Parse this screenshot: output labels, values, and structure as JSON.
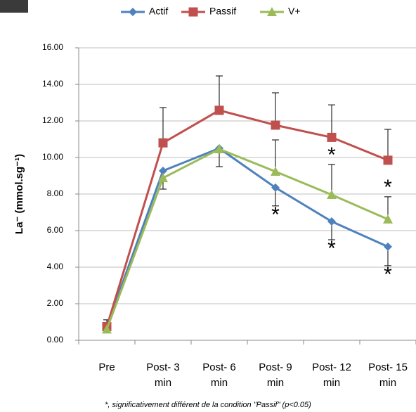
{
  "chart_data": {
    "type": "line",
    "categories": [
      "Pre",
      "Post- 3 min",
      "Post- 6 min",
      "Post- 9 min",
      "Post- 12 min",
      "Post- 15 min"
    ],
    "y_label": "La⁻ (mmol.sg⁻¹)",
    "footnote": "*, significativement différent de  la condition \"Passif\" (p<0.05)",
    "ylim": [
      0,
      16
    ],
    "yticks": [
      {
        "value": 0,
        "label": "0.00"
      },
      {
        "value": 2,
        "label": "2.00"
      },
      {
        "value": 4,
        "label": "4.00"
      },
      {
        "value": 6,
        "label": "6.00"
      },
      {
        "value": 8,
        "label": "8.00"
      },
      {
        "value": 10,
        "label": "10.00"
      },
      {
        "value": 12,
        "label": "12.00"
      },
      {
        "value": 14,
        "label": "14.00"
      },
      {
        "value": 16,
        "label": "16.00"
      }
    ],
    "grid": true,
    "series": [
      {
        "name": "Actif",
        "color": "#4f81bd",
        "marker": "diamond",
        "values": [
          0.75,
          9.27,
          10.5,
          8.35,
          6.5,
          5.12
        ],
        "error": [
          null,
          1.0,
          1.0,
          1.0,
          1.0,
          1.04
        ],
        "error_direction": "down",
        "significance": [
          null,
          null,
          null,
          "*",
          "*",
          "*"
        ]
      },
      {
        "name": "Passif",
        "color": "#c0504d",
        "marker": "square",
        "values": [
          0.75,
          10.8,
          12.58,
          11.77,
          11.1,
          9.85
        ],
        "error": [
          0.37,
          1.93,
          1.88,
          1.77,
          1.78,
          1.69
        ],
        "error_direction": "up",
        "significance": [
          null,
          null,
          null,
          null,
          null,
          null
        ]
      },
      {
        "name": "V+",
        "color": "#9bbb59",
        "marker": "triangle",
        "values": [
          0.6,
          8.88,
          10.46,
          9.23,
          7.96,
          6.62
        ],
        "error": [
          null,
          null,
          null,
          1.73,
          1.66,
          1.23
        ],
        "error_direction": "up",
        "significance": [
          null,
          null,
          null,
          null,
          "*",
          "*"
        ]
      }
    ]
  }
}
